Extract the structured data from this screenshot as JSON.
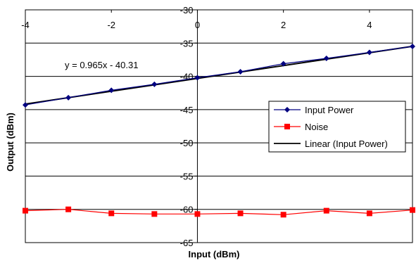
{
  "chart_data": {
    "type": "line",
    "title": "",
    "xlabel": "Input (dBm)",
    "ylabel": "Output (dBm)",
    "xlim": [
      -4,
      5
    ],
    "ylim": [
      -65,
      -30
    ],
    "x_ticks": [
      -4,
      -2,
      0,
      2,
      4
    ],
    "y_ticks": [
      -30,
      -35,
      -40,
      -45,
      -50,
      -55,
      -60,
      -65
    ],
    "grid": "horizontal major gridlines",
    "legend_position": "right, middle",
    "series": [
      {
        "name": "Input Power",
        "color": "#000080",
        "marker": "diamond",
        "x": [
          -4,
          -3,
          -2,
          -1,
          0,
          1,
          2,
          3,
          4,
          5
        ],
        "y": [
          -44.3,
          -43.2,
          -42.1,
          -41.2,
          -40.2,
          -39.3,
          -38.1,
          -37.3,
          -36.4,
          -35.5
        ]
      },
      {
        "name": "Noise",
        "color": "#ff0000",
        "marker": "square",
        "x": [
          -4,
          -3,
          -2,
          -1,
          0,
          1,
          2,
          3,
          4,
          5
        ],
        "y": [
          -60.2,
          -60.0,
          -60.6,
          -60.7,
          -60.7,
          -60.6,
          -60.8,
          -60.2,
          -60.6,
          -60.1
        ]
      },
      {
        "name": "Linear (Input Power)",
        "color": "#000000",
        "marker": "none",
        "type": "trendline",
        "slope": 0.965,
        "intercept": -40.31
      }
    ],
    "annotations": [
      {
        "text": "y = 0.965x - 40.31"
      }
    ]
  }
}
